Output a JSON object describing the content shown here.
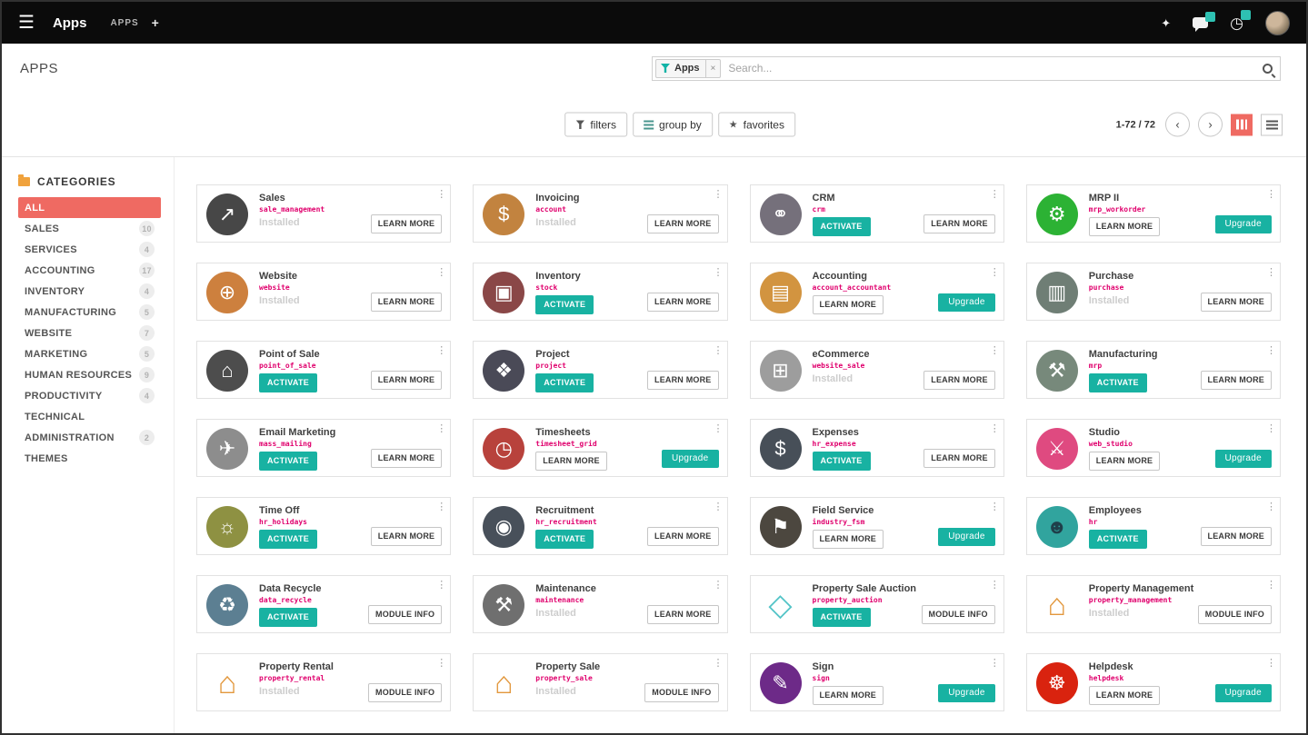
{
  "navbar": {
    "app_title": "Apps",
    "breadcrumb": "APPS",
    "add_tab": "+"
  },
  "control_panel": {
    "page_title": "APPS",
    "search": {
      "facet": "Apps",
      "facet_remove": "×",
      "placeholder": "Search..."
    },
    "filter_buttons": [
      {
        "label": "filters"
      },
      {
        "label": "group by"
      },
      {
        "label": "favorites"
      }
    ],
    "pager": {
      "text": "1-72 / 72",
      "prev": "‹",
      "next": "›"
    }
  },
  "sidebar": {
    "header": "CATEGORIES",
    "items": [
      {
        "label": "ALL",
        "count": "",
        "active": true
      },
      {
        "label": "SALES",
        "count": "10"
      },
      {
        "label": "SERVICES",
        "count": "4"
      },
      {
        "label": "ACCOUNTING",
        "count": "17"
      },
      {
        "label": "INVENTORY",
        "count": "4"
      },
      {
        "label": "MANUFACTURING",
        "count": "5"
      },
      {
        "label": "WEBSITE",
        "count": "7"
      },
      {
        "label": "MARKETING",
        "count": "5"
      },
      {
        "label": "HUMAN RESOURCES",
        "count": "9"
      },
      {
        "label": "PRODUCTIVITY",
        "count": "4"
      },
      {
        "label": "TECHNICAL",
        "count": ""
      },
      {
        "label": "ADMINISTRATION",
        "count": "2"
      },
      {
        "label": "THEMES",
        "count": ""
      }
    ]
  },
  "colors": {
    "teal_accent": "#18b2a2",
    "pink_accent": "#ef6a62",
    "tech_name_pink": "#e0006d"
  },
  "apps": [
    {
      "name": "Sales",
      "tech": "sale_management",
      "icon": {
        "glyph": "↗",
        "bg": "#474747",
        "fg": "#ffffff"
      },
      "left": {
        "kind": "installed",
        "label": "Installed"
      },
      "right": {
        "kind": "info",
        "label": "LEARN MORE"
      }
    },
    {
      "name": "Invoicing",
      "tech": "account",
      "icon": {
        "glyph": "$",
        "bg": "#c2833f",
        "fg": "#ffffff"
      },
      "left": {
        "kind": "installed",
        "label": "Installed"
      },
      "right": {
        "kind": "info",
        "label": "LEARN MORE"
      }
    },
    {
      "name": "CRM",
      "tech": "crm",
      "icon": {
        "glyph": "⚭",
        "bg": "#75707b",
        "fg": "#ffffff"
      },
      "left": {
        "kind": "activate",
        "label": "ACTIVATE"
      },
      "right": {
        "kind": "info",
        "label": "LEARN MORE"
      }
    },
    {
      "name": "MRP II",
      "tech": "mrp_workorder",
      "icon": {
        "glyph": "⚙",
        "bg": "#2cb234",
        "fg": "#ffffff"
      },
      "left": {
        "kind": "info",
        "label": "LEARN MORE"
      },
      "right": {
        "kind": "upgrade",
        "label": "Upgrade"
      }
    },
    {
      "name": "Website",
      "tech": "website",
      "icon": {
        "glyph": "⊕",
        "bg": "#cd803e",
        "fg": "#ffffff"
      },
      "left": {
        "kind": "installed",
        "label": "Installed"
      },
      "right": {
        "kind": "info",
        "label": "LEARN MORE"
      }
    },
    {
      "name": "Inventory",
      "tech": "stock",
      "icon": {
        "glyph": "▣",
        "bg": "#8a4747",
        "fg": "#ffffff"
      },
      "left": {
        "kind": "activate",
        "label": "ACTIVATE"
      },
      "right": {
        "kind": "info",
        "label": "LEARN MORE"
      }
    },
    {
      "name": "Accounting",
      "tech": "account_accountant",
      "icon": {
        "glyph": "▤",
        "bg": "#d29440",
        "fg": "#ffffff"
      },
      "left": {
        "kind": "info",
        "label": "LEARN MORE"
      },
      "right": {
        "kind": "upgrade",
        "label": "Upgrade"
      }
    },
    {
      "name": "Purchase",
      "tech": "purchase",
      "icon": {
        "glyph": "▥",
        "bg": "#6f7e75",
        "fg": "#ffffff"
      },
      "left": {
        "kind": "installed",
        "label": "Installed"
      },
      "right": {
        "kind": "info",
        "label": "LEARN MORE"
      }
    },
    {
      "name": "Point of Sale",
      "tech": "point_of_sale",
      "icon": {
        "glyph": "⌂",
        "bg": "#4d4d4d",
        "fg": "#ffffff"
      },
      "left": {
        "kind": "activate",
        "label": "ACTIVATE"
      },
      "right": {
        "kind": "info",
        "label": "LEARN MORE"
      }
    },
    {
      "name": "Project",
      "tech": "project",
      "icon": {
        "glyph": "❖",
        "bg": "#4a4a57",
        "fg": "#ffffff"
      },
      "left": {
        "kind": "activate",
        "label": "ACTIVATE"
      },
      "right": {
        "kind": "info",
        "label": "LEARN MORE"
      }
    },
    {
      "name": "eCommerce",
      "tech": "website_sale",
      "icon": {
        "glyph": "⊞",
        "bg": "#9d9d9d",
        "fg": "#ffffff"
      },
      "left": {
        "kind": "installed",
        "label": "Installed"
      },
      "right": {
        "kind": "info",
        "label": "LEARN MORE"
      }
    },
    {
      "name": "Manufacturing",
      "tech": "mrp",
      "icon": {
        "glyph": "⚒",
        "bg": "#77897b",
        "fg": "#ffffff"
      },
      "left": {
        "kind": "activate",
        "label": "ACTIVATE"
      },
      "right": {
        "kind": "info",
        "label": "LEARN MORE"
      }
    },
    {
      "name": "Email Marketing",
      "tech": "mass_mailing",
      "icon": {
        "glyph": "✈",
        "bg": "#8d8d8d",
        "fg": "#ffffff"
      },
      "left": {
        "kind": "activate",
        "label": "ACTIVATE"
      },
      "right": {
        "kind": "info",
        "label": "LEARN MORE"
      }
    },
    {
      "name": "Timesheets",
      "tech": "timesheet_grid",
      "icon": {
        "glyph": "◷",
        "bg": "#b8423c",
        "fg": "#ffffff"
      },
      "left": {
        "kind": "info",
        "label": "LEARN MORE"
      },
      "right": {
        "kind": "upgrade",
        "label": "Upgrade"
      }
    },
    {
      "name": "Expenses",
      "tech": "hr_expense",
      "icon": {
        "glyph": "$",
        "bg": "#474f58",
        "fg": "#ffffff"
      },
      "left": {
        "kind": "activate",
        "label": "ACTIVATE"
      },
      "right": {
        "kind": "info",
        "label": "LEARN MORE"
      }
    },
    {
      "name": "Studio",
      "tech": "web_studio",
      "icon": {
        "glyph": "⚔",
        "bg": "#df4a80",
        "fg": "#ffffff"
      },
      "left": {
        "kind": "info",
        "label": "LEARN MORE"
      },
      "right": {
        "kind": "upgrade",
        "label": "Upgrade"
      }
    },
    {
      "name": "Time Off",
      "tech": "hr_holidays",
      "icon": {
        "glyph": "☼",
        "bg": "#8e9142",
        "fg": "#ffffff"
      },
      "left": {
        "kind": "activate",
        "label": "ACTIVATE"
      },
      "right": {
        "kind": "info",
        "label": "LEARN MORE"
      }
    },
    {
      "name": "Recruitment",
      "tech": "hr_recruitment",
      "icon": {
        "glyph": "◉",
        "bg": "#48505a",
        "fg": "#ffffff"
      },
      "left": {
        "kind": "activate",
        "label": "ACTIVATE"
      },
      "right": {
        "kind": "info",
        "label": "LEARN MORE"
      }
    },
    {
      "name": "Field Service",
      "tech": "industry_fsm",
      "icon": {
        "glyph": "⚑",
        "bg": "#4c473f",
        "fg": "#ffffff"
      },
      "left": {
        "kind": "info",
        "label": "LEARN MORE"
      },
      "right": {
        "kind": "upgrade",
        "label": "Upgrade"
      }
    },
    {
      "name": "Employees",
      "tech": "hr",
      "icon": {
        "glyph": "☻",
        "bg": "#31a49e",
        "fg": "#1f3f4a"
      },
      "left": {
        "kind": "activate",
        "label": "ACTIVATE"
      },
      "right": {
        "kind": "info",
        "label": "LEARN MORE"
      }
    },
    {
      "name": "Data Recycle",
      "tech": "data_recycle",
      "icon": {
        "glyph": "♻",
        "bg": "#5c7f92",
        "fg": "#ffffff"
      },
      "left": {
        "kind": "activate",
        "label": "ACTIVATE"
      },
      "right": {
        "kind": "info",
        "label": "MODULE INFO"
      }
    },
    {
      "name": "Maintenance",
      "tech": "maintenance",
      "icon": {
        "glyph": "⚒",
        "bg": "#6f6f6f",
        "fg": "#ffffff"
      },
      "left": {
        "kind": "installed",
        "label": "Installed"
      },
      "right": {
        "kind": "info",
        "label": "LEARN MORE"
      }
    },
    {
      "name": "Property Sale Auction",
      "tech": "property_auction",
      "icon": {
        "glyph": "◇",
        "bg": "transparent",
        "fg": "#53c4c7",
        "flat": true
      },
      "left": {
        "kind": "activate",
        "label": "ACTIVATE"
      },
      "right": {
        "kind": "info",
        "label": "MODULE INFO"
      }
    },
    {
      "name": "Property Management",
      "tech": "property_management",
      "icon": {
        "glyph": "⌂",
        "bg": "transparent",
        "fg": "#e2973c",
        "flat": true
      },
      "left": {
        "kind": "installed",
        "label": "Installed"
      },
      "right": {
        "kind": "info",
        "label": "MODULE INFO"
      }
    },
    {
      "name": "Property Rental",
      "tech": "property_rental",
      "icon": {
        "glyph": "⌂",
        "bg": "transparent",
        "fg": "#e2973c",
        "flat": true
      },
      "left": {
        "kind": "installed",
        "label": "Installed"
      },
      "right": {
        "kind": "info",
        "label": "MODULE INFO"
      }
    },
    {
      "name": "Property Sale",
      "tech": "property_sale",
      "icon": {
        "glyph": "⌂",
        "bg": "transparent",
        "fg": "#e2973c",
        "flat": true
      },
      "left": {
        "kind": "installed",
        "label": "Installed"
      },
      "right": {
        "kind": "info",
        "label": "MODULE INFO"
      }
    },
    {
      "name": "Sign",
      "tech": "sign",
      "icon": {
        "glyph": "✎",
        "bg": "#6d2a88",
        "fg": "#ffffff"
      },
      "left": {
        "kind": "info",
        "label": "LEARN MORE"
      },
      "right": {
        "kind": "upgrade",
        "label": "Upgrade"
      }
    },
    {
      "name": "Helpdesk",
      "tech": "helpdesk",
      "icon": {
        "glyph": "☸",
        "bg": "#d9230f",
        "fg": "#ffffff"
      },
      "left": {
        "kind": "info",
        "label": "LEARN MORE"
      },
      "right": {
        "kind": "upgrade",
        "label": "Upgrade"
      }
    }
  ]
}
